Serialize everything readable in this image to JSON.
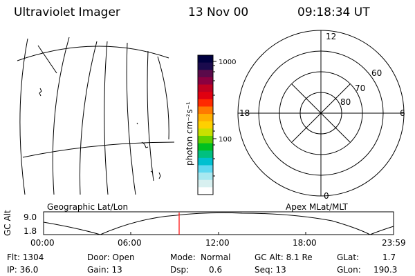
{
  "header": {
    "instrument": "Ultraviolet Imager",
    "date": "13 Nov 00",
    "time": "09:18:34 UT"
  },
  "map_labels": {
    "left": "Geographic Lat/Lon",
    "right": "Apex MLat/MLT"
  },
  "colorbar": {
    "unit_label": "photon cm⁻²s⁻¹",
    "ticks": [
      "1000",
      "100"
    ],
    "colors": [
      "#000040",
      "#1a0a4d",
      "#5a0a4a",
      "#8a0040",
      "#c00020",
      "#e00010",
      "#ff2a00",
      "#ff7a00",
      "#ffb000",
      "#ffd000",
      "#c8e000",
      "#60d000",
      "#00c020",
      "#00c080",
      "#00c0d0",
      "#60d8f0",
      "#a8e8f0",
      "#d8f0f0",
      "#ffffff"
    ]
  },
  "polar": {
    "mlt_labels": {
      "top": "12",
      "left": "18",
      "right": "6",
      "bottom": "0"
    },
    "mlat_labels": [
      "60",
      "70",
      "80"
    ]
  },
  "altitude_plot": {
    "ylabel": "GC Alt",
    "y_ticks": [
      "9.0",
      "1.8"
    ],
    "x_ticks": [
      "00:00",
      "06:00",
      "12:00",
      "18:00",
      "23:59"
    ],
    "marker_color": "#ff0000",
    "marker_time": "09:18"
  },
  "info": {
    "flt": "Flt: 1304",
    "ip": "IP: 36.0",
    "door": "Door: Open",
    "gain": "Gain: 13",
    "mode_label": "Mode:",
    "mode_value": "Normal",
    "dsp_label": "Dsp:",
    "dsp_value": "0.6",
    "gcalt": "GC Alt: 8.1 Re",
    "seq": "Seq: 13",
    "glat_label": "GLat:",
    "glat_value": "1.7",
    "glon_label": "GLon:",
    "glon_value": "190.3"
  }
}
